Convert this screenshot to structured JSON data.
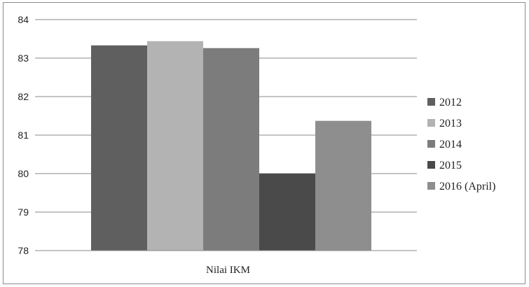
{
  "chart_data": {
    "type": "bar",
    "categories": [
      "Nilai IKM"
    ],
    "series": [
      {
        "name": "2012",
        "values": [
          83.33
        ],
        "color": "#5f5f5f"
      },
      {
        "name": "2013",
        "values": [
          83.44
        ],
        "color": "#b3b3b3"
      },
      {
        "name": "2014",
        "values": [
          83.26
        ],
        "color": "#7c7c7c"
      },
      {
        "name": "2015",
        "values": [
          80.0
        ],
        "color": "#4a4a4a"
      },
      {
        "name": "2016 (April)",
        "values": [
          81.37
        ],
        "color": "#8e8e8e"
      }
    ],
    "ylim": [
      78,
      84
    ],
    "yticks": [
      78,
      79,
      80,
      81,
      82,
      83,
      84
    ],
    "grid": true,
    "legend_position": "right"
  }
}
